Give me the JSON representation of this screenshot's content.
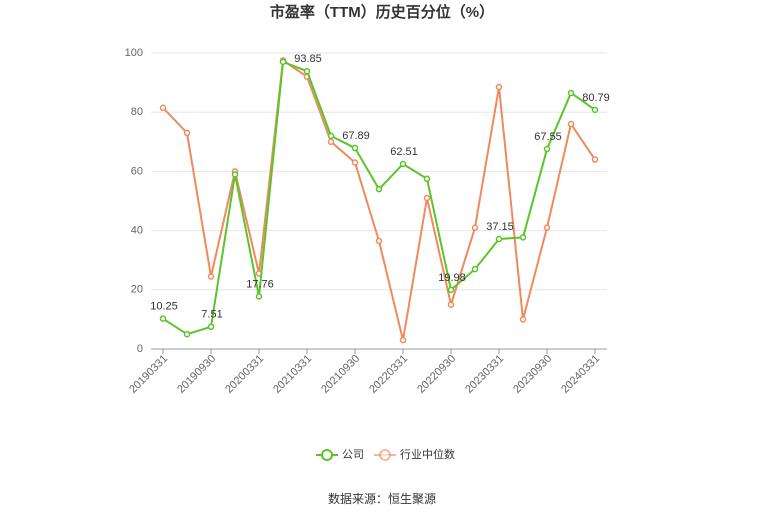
{
  "chart_data": {
    "type": "line",
    "title": "市盈率（TTM）历史百分位（%）",
    "categories": [
      "20190331",
      null,
      "20190930",
      null,
      "20200331",
      null,
      "20210331",
      null,
      "20210930",
      null,
      "20220331",
      null,
      "20220930",
      null,
      "20230331",
      null,
      "20230930",
      null,
      "20240331"
    ],
    "series": [
      {
        "name": "公司",
        "color": "#5cc42b",
        "values": [
          10.25,
          5,
          7.51,
          59,
          17.76,
          97,
          93.85,
          72,
          67.89,
          54,
          62.51,
          57.5,
          19.98,
          27,
          37.15,
          37.7,
          67.55,
          86.5,
          80.79
        ],
        "value_labels": [
          "10.25",
          null,
          "7.51",
          null,
          "17.76",
          null,
          "93.85",
          null,
          "67.89",
          null,
          "62.51",
          null,
          "19.98",
          null,
          "37.15",
          null,
          "67.55",
          null,
          "80.79"
        ]
      },
      {
        "name": "行业中位数",
        "color": "#f08a5d",
        "values": [
          81.5,
          73,
          24.5,
          60,
          25.5,
          97.5,
          92,
          70,
          63,
          36.5,
          3,
          51,
          15,
          41,
          88.5,
          10,
          41,
          76,
          64
        ]
      }
    ],
    "ylim": [
      0,
      100
    ],
    "yticks": [
      0,
      20,
      40,
      60,
      80,
      100
    ],
    "grid": true,
    "legend": "bottom",
    "source": "数据来源：恒生聚源"
  }
}
